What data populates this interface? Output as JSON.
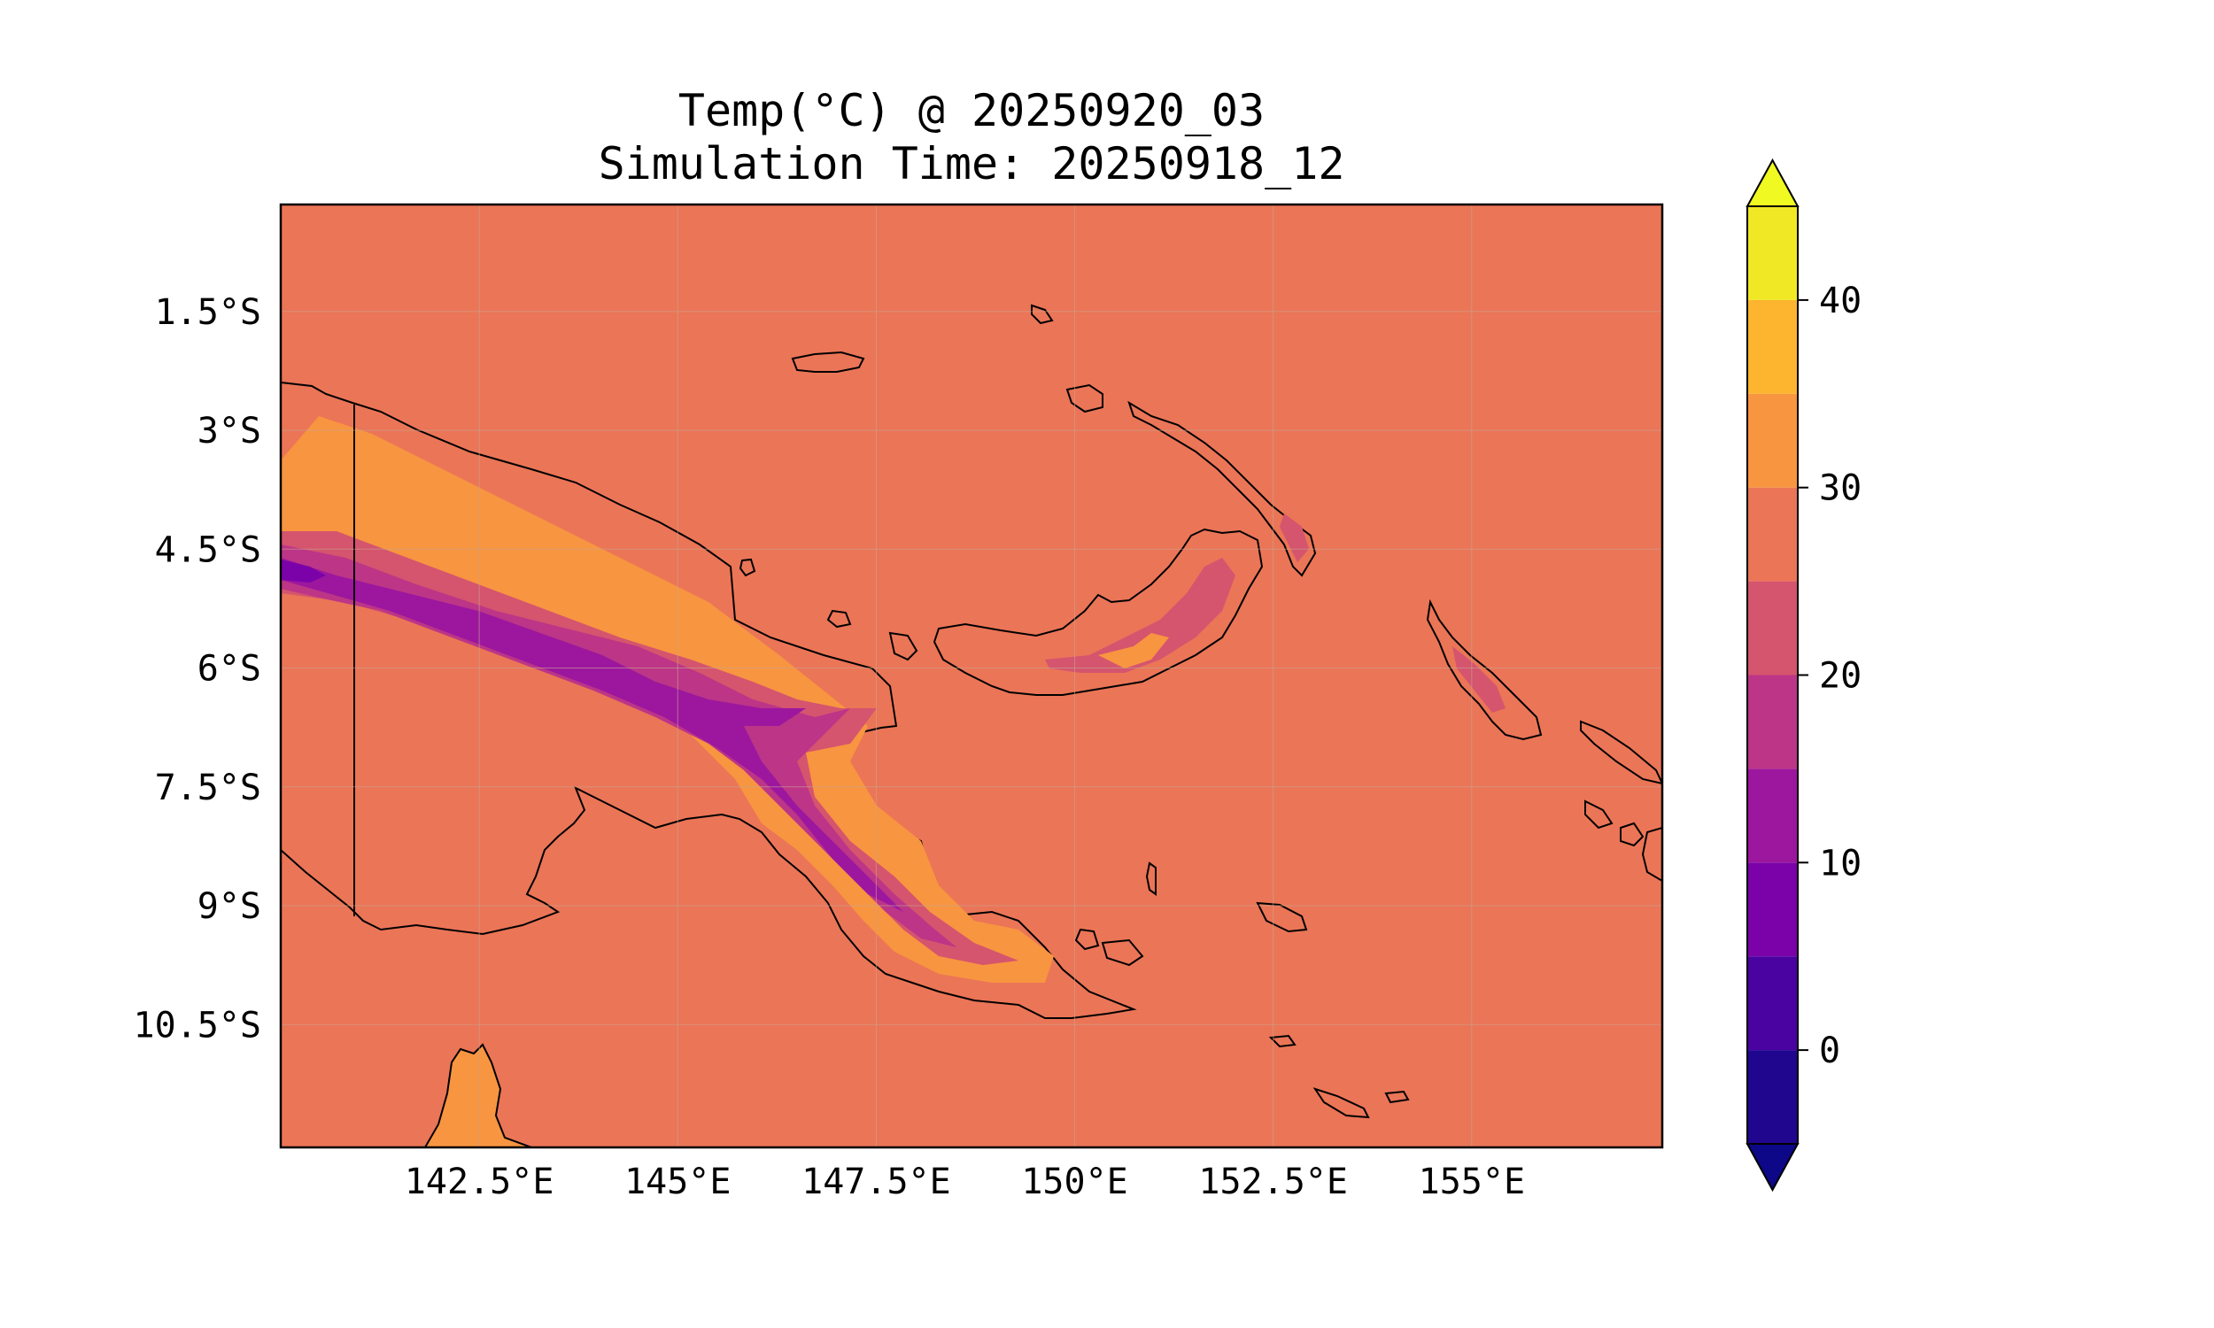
{
  "title": {
    "line1": "Temp(°C) @ 20250920_03",
    "line2": "Simulation Time: 20250918_12"
  },
  "map": {
    "lon_range": [
      140.0,
      157.4
    ],
    "lat_range": [
      -12.05,
      -0.15
    ],
    "lon_ticks": [
      {
        "value": 142.5,
        "label": "142.5°E"
      },
      {
        "value": 145.0,
        "label": "145°E"
      },
      {
        "value": 147.5,
        "label": "147.5°E"
      },
      {
        "value": 150.0,
        "label": "150°E"
      },
      {
        "value": 152.5,
        "label": "152.5°E"
      },
      {
        "value": 155.0,
        "label": "155°E"
      }
    ],
    "lat_ticks": [
      {
        "value": -1.5,
        "label": "1.5°S"
      },
      {
        "value": -3.0,
        "label": "3°S"
      },
      {
        "value": -4.5,
        "label": "4.5°S"
      },
      {
        "value": -6.0,
        "label": "6°S"
      },
      {
        "value": -7.5,
        "label": "7.5°S"
      },
      {
        "value": -9.0,
        "label": "9°S"
      },
      {
        "value": -10.5,
        "label": "10.5°S"
      }
    ],
    "ocean_value": 27
  },
  "colorbar": {
    "min": -5,
    "max": 45,
    "ticks": [
      {
        "value": 0,
        "label": "0"
      },
      {
        "value": 10,
        "label": "10"
      },
      {
        "value": 20,
        "label": "20"
      },
      {
        "value": 30,
        "label": "30"
      },
      {
        "value": 40,
        "label": "40"
      }
    ],
    "levels": [
      {
        "from": -5,
        "to": 0,
        "color": "#20068f"
      },
      {
        "from": 0,
        "to": 5,
        "color": "#4a02a0"
      },
      {
        "from": 5,
        "to": 10,
        "color": "#7a02a8"
      },
      {
        "from": 10,
        "to": 15,
        "color": "#9c179e"
      },
      {
        "from": 15,
        "to": 20,
        "color": "#bc3587"
      },
      {
        "from": 20,
        "to": 25,
        "color": "#d5546e"
      },
      {
        "from": 25,
        "to": 30,
        "color": "#eb7557"
      },
      {
        "from": 30,
        "to": 35,
        "color": "#f89540"
      },
      {
        "from": 35,
        "to": 40,
        "color": "#fdb42f"
      },
      {
        "from": 40,
        "to": 45,
        "color": "#f0e825"
      }
    ],
    "under_color": "#0d0887",
    "over_color": "#f0f921"
  }
}
